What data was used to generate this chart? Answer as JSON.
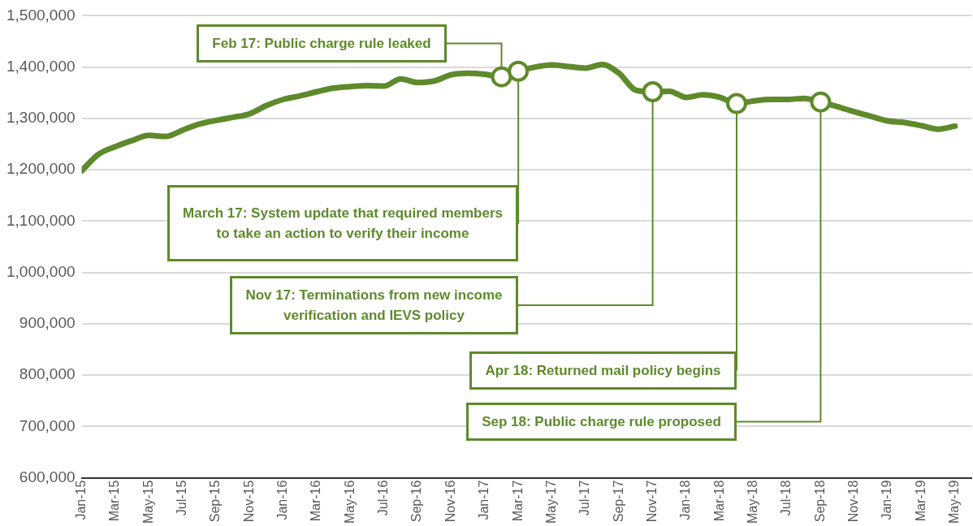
{
  "chart_data": {
    "type": "line",
    "x": [
      "2015-01",
      "2015-02",
      "2015-03",
      "2015-04",
      "2015-05",
      "2015-06",
      "2015-07",
      "2015-08",
      "2015-09",
      "2015-10",
      "2015-11",
      "2015-12",
      "2016-01",
      "2016-02",
      "2016-03",
      "2016-04",
      "2016-05",
      "2016-06",
      "2016-07",
      "2016-08",
      "2016-09",
      "2016-10",
      "2016-11",
      "2016-12",
      "2017-01",
      "2017-02",
      "2017-03",
      "2017-04",
      "2017-05",
      "2017-06",
      "2017-07",
      "2017-08",
      "2017-09",
      "2017-10",
      "2017-11",
      "2017-12",
      "2018-01",
      "2018-02",
      "2018-03",
      "2018-04",
      "2018-05",
      "2018-06",
      "2018-07",
      "2018-08",
      "2018-09",
      "2018-10",
      "2018-11",
      "2018-12",
      "2019-01",
      "2019-02",
      "2019-03",
      "2019-04",
      "2019-05"
    ],
    "series": [
      {
        "color": "#5e8a2b",
        "values": [
          1198000,
          1230000,
          1245000,
          1257000,
          1267000,
          1265000,
          1277000,
          1289000,
          1296000,
          1302000,
          1309000,
          1325000,
          1337000,
          1344000,
          1352000,
          1359000,
          1362000,
          1364000,
          1363000,
          1377000,
          1370000,
          1373000,
          1385000,
          1388000,
          1386000,
          1381000,
          1392000,
          1400000,
          1404000,
          1401000,
          1398000,
          1405000,
          1388000,
          1355000,
          1352000,
          1353000,
          1341000,
          1346000,
          1341000,
          1329000,
          1334000,
          1337000,
          1337000,
          1339000,
          1332000,
          1323000,
          1313000,
          1304000,
          1295000,
          1292000,
          1286000,
          1279000,
          1285000
        ]
      }
    ],
    "xlim": [
      "2015-01",
      "2019-06"
    ],
    "xticks": [
      {
        "value": "2015-01",
        "label": "Jan-15"
      },
      {
        "value": "2015-03",
        "label": "Mar-15"
      },
      {
        "value": "2015-05",
        "label": "May-15"
      },
      {
        "value": "2015-07",
        "label": "Jul-15"
      },
      {
        "value": "2015-09",
        "label": "Sep-15"
      },
      {
        "value": "2015-11",
        "label": "Nov-15"
      },
      {
        "value": "2016-01",
        "label": "Jan-16"
      },
      {
        "value": "2016-03",
        "label": "Mar-16"
      },
      {
        "value": "2016-05",
        "label": "May-16"
      },
      {
        "value": "2016-07",
        "label": "Jul-16"
      },
      {
        "value": "2016-09",
        "label": "Sep-16"
      },
      {
        "value": "2016-11",
        "label": "Nov-16"
      },
      {
        "value": "2017-01",
        "label": "Jan-17"
      },
      {
        "value": "2017-03",
        "label": "Mar-17"
      },
      {
        "value": "2017-05",
        "label": "May-17"
      },
      {
        "value": "2017-07",
        "label": "Jul-17"
      },
      {
        "value": "2017-09",
        "label": "Sep-17"
      },
      {
        "value": "2017-11",
        "label": "Nov-17"
      },
      {
        "value": "2018-01",
        "label": "Jan-18"
      },
      {
        "value": "2018-03",
        "label": "Mar-18"
      },
      {
        "value": "2018-05",
        "label": "May-18"
      },
      {
        "value": "2018-07",
        "label": "Jul-18"
      },
      {
        "value": "2018-09",
        "label": "Sep-18"
      },
      {
        "value": "2018-11",
        "label": "Nov-18"
      },
      {
        "value": "2019-01",
        "label": "Jan-19"
      },
      {
        "value": "2019-03",
        "label": "Mar-19"
      },
      {
        "value": "2019-05",
        "label": "May-19"
      }
    ],
    "ylim": [
      600000,
      1500000
    ],
    "yticks": [
      {
        "value": 600000,
        "label": "600,000"
      },
      {
        "value": 700000,
        "label": "700,000"
      },
      {
        "value": 800000,
        "label": "800,000"
      },
      {
        "value": 900000,
        "label": "900,000"
      },
      {
        "value": 1000000,
        "label": "1,000,000"
      },
      {
        "value": 1100000,
        "label": "1,100,000"
      },
      {
        "value": 1200000,
        "label": "1,200,000"
      },
      {
        "value": 1300000,
        "label": "1,300,000"
      },
      {
        "value": 1400000,
        "label": "1,400,000"
      },
      {
        "value": 1500000,
        "label": "1,500,000"
      }
    ],
    "grid": "y",
    "annotations": [
      {
        "text": "Feb 17: Public charge rule leaked",
        "x": "2017-02",
        "y": 1381000
      },
      {
        "text": "March 17: System update that required members to take an action to verify their income",
        "x": "2017-03",
        "y": 1392000
      },
      {
        "text": "Nov 17: Terminations from new income verification and IEVS policy",
        "x": "2017-11",
        "y": 1352000
      },
      {
        "text": "Apr 18: Returned mail policy begins",
        "x": "2018-04",
        "y": 1329000
      },
      {
        "text": "Sep 18: Public charge rule proposed",
        "x": "2018-09",
        "y": 1332000
      }
    ]
  }
}
